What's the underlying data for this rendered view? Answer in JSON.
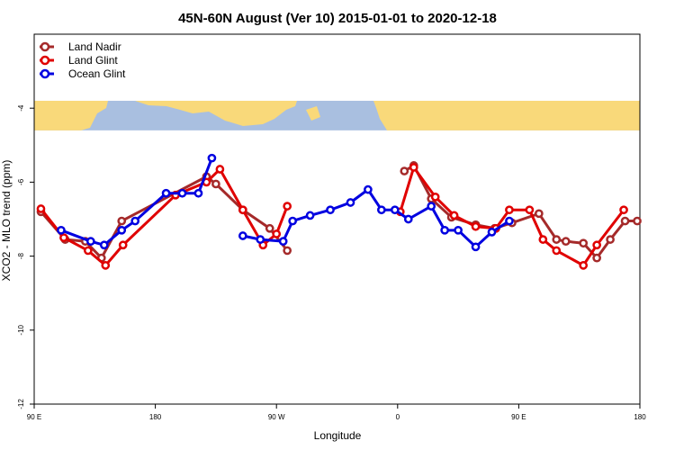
{
  "chart_data": {
    "type": "line",
    "title": "45N-60N August (Ver 10)   2015-01-01 to 2020-12-18",
    "xlabel": "Longitude",
    "ylabel": "XCO2 - MLO trend (ppm)",
    "xlim": [
      90,
      450
    ],
    "ylim": [
      -12,
      -2
    ],
    "x_ticks": [
      {
        "value": 90,
        "label": "90 E"
      },
      {
        "value": 180,
        "label": "180"
      },
      {
        "value": 270,
        "label": "90 W"
      },
      {
        "value": 360,
        "label": "0"
      },
      {
        "value": 450,
        "label": "90 E"
      },
      {
        "value": 540,
        "label": "180"
      }
    ],
    "y_ticks": [
      {
        "value": -4,
        "label": "-4"
      },
      {
        "value": -6,
        "label": "-6"
      },
      {
        "value": -8,
        "label": "-8"
      },
      {
        "value": -10,
        "label": "-10"
      },
      {
        "value": -12,
        "label": "-12"
      }
    ],
    "legend_position": "top-left",
    "grid": false,
    "map_strip": {
      "y_from": -4.6,
      "y_to": -3.8,
      "ocean_color": "#a9bfe0",
      "land_color": "#f9d97a"
    },
    "series": [
      {
        "name": "Land Nadir",
        "color": "#a52a2a",
        "x": [
          95,
          113,
          128,
          140,
          155,
          218,
          225,
          245,
          265,
          278
        ],
        "y": [
          -6.8,
          -7.55,
          -7.6,
          -8.05,
          -7.05,
          -5.85,
          -6.05,
          -6.75,
          -7.25,
          -7.85
        ],
        "x2": [
          365,
          372,
          385,
          400,
          418,
          432,
          445,
          465,
          478,
          485,
          498,
          508,
          518,
          529,
          538
        ],
        "y2": [
          -5.7,
          -5.55,
          -6.45,
          -6.95,
          -7.15,
          -7.25,
          -7.1,
          -6.85,
          -7.55,
          -7.6,
          -7.65,
          -8.05,
          -7.55,
          -7.05,
          -7.05
        ]
      },
      {
        "name": "Land Glint",
        "color": "#e00000",
        "x": [
          95,
          112,
          130,
          143,
          156,
          195,
          218,
          228,
          245,
          260,
          270,
          278
        ],
        "y": [
          -6.72,
          -7.5,
          -7.85,
          -8.25,
          -7.7,
          -6.35,
          -6.0,
          -5.65,
          -6.75,
          -7.7,
          -7.4,
          -6.65
        ],
        "x2": [
          362,
          372,
          388,
          402,
          418,
          433,
          443,
          458,
          468,
          478,
          498,
          508,
          528
        ],
        "y2": [
          -6.8,
          -5.6,
          -6.4,
          -6.9,
          -7.2,
          -7.25,
          -6.75,
          -6.75,
          -7.55,
          -7.85,
          -8.25,
          -7.7,
          -6.75
        ]
      },
      {
        "name": "Ocean Glint",
        "color": "#0000e0",
        "x": [
          110,
          132,
          142,
          155,
          165,
          188,
          200,
          212,
          222
        ],
        "y": [
          -7.3,
          -7.6,
          -7.7,
          -7.3,
          -7.05,
          -6.3,
          -6.3,
          -6.3,
          -5.35
        ],
        "x2": [
          245,
          258,
          275,
          282,
          295,
          310,
          325,
          338,
          348,
          358,
          368,
          385,
          395,
          405,
          418,
          430,
          443
        ],
        "y2": [
          -7.45,
          -7.55,
          -7.6,
          -7.05,
          -6.9,
          -6.75,
          -6.55,
          -6.2,
          -6.75,
          -6.75,
          -7.0,
          -6.65,
          -7.3,
          -7.3,
          -7.75,
          -7.35,
          -7.05
        ]
      }
    ]
  }
}
